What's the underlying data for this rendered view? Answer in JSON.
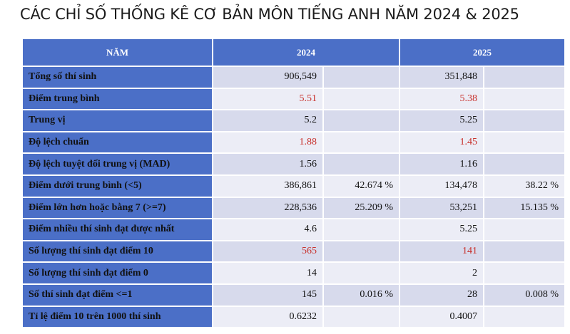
{
  "title": "CÁC CHỈ SỐ THỐNG KÊ CƠ BẢN MÔN TIẾNG ANH NĂM 2024 & 2025",
  "headers": {
    "label": "NĂM",
    "y2024": "2024",
    "y2025": "2025"
  },
  "rows": [
    {
      "label": "Tổng số thí sinh",
      "v2024": "906,549",
      "p2024": "",
      "v2025": "351,848",
      "p2025": "",
      "highlight": false
    },
    {
      "label": "Điểm trung bình",
      "v2024": "5.51",
      "p2024": "",
      "v2025": "5.38",
      "p2025": "",
      "highlight": true
    },
    {
      "label": "Trung vị",
      "v2024": "5.2",
      "p2024": "",
      "v2025": "5.25",
      "p2025": "",
      "highlight": false
    },
    {
      "label": "Độ lệch chuẩn",
      "v2024": "1.88",
      "p2024": "",
      "v2025": "1.45",
      "p2025": "",
      "highlight": true
    },
    {
      "label": "Độ lệch tuyệt đối trung vị (MAD)",
      "v2024": "1.56",
      "p2024": "",
      "v2025": "1.16",
      "p2025": "",
      "highlight": false
    },
    {
      "label": "Điểm dưới trung bình (<5)",
      "v2024": "386,861",
      "p2024": "42.674 %",
      "v2025": "134,478",
      "p2025": "38.22 %",
      "highlight": false
    },
    {
      "label": "Điểm lớn hơn hoặc bằng 7 (>=7)",
      "v2024": "228,536",
      "p2024": "25.209 %",
      "v2025": "53,251",
      "p2025": "15.135 %",
      "highlight": false
    },
    {
      "label": "Điểm nhiều thí sinh đạt được nhất",
      "v2024": "4.6",
      "p2024": "",
      "v2025": "5.25",
      "p2025": "",
      "highlight": false
    },
    {
      "label": "Số lượng thí sinh đạt điểm 10",
      "v2024": "565",
      "p2024": "",
      "v2025": "141",
      "p2025": "",
      "highlight": true
    },
    {
      "label": "Số lượng thí sinh đạt điểm 0",
      "v2024": "14",
      "p2024": "",
      "v2025": "2",
      "p2025": "",
      "highlight": false
    },
    {
      "label": "Số thí sinh đạt điểm <=1",
      "v2024": "145",
      "p2024": "0.016 %",
      "v2025": "28",
      "p2025": "0.008 %",
      "highlight": false
    },
    {
      "label": "Tỉ lệ điểm 10 trên 1000 thí sinh",
      "v2024": "0.6232",
      "p2024": "",
      "v2025": "0.4007",
      "p2025": "",
      "highlight": false
    }
  ],
  "colors": {
    "header_bg": "#4b6fc7",
    "cell_dark": "#d7daec",
    "cell_light": "#ecedf6",
    "highlight_text": "#c8302b"
  }
}
